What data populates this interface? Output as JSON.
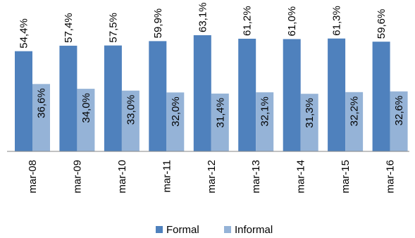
{
  "chart_data": {
    "type": "bar",
    "categories": [
      "mar-08",
      "mar-09",
      "mar-10",
      "mar-11",
      "mar-12",
      "mar-13",
      "mar-14",
      "mar-15",
      "mar-16"
    ],
    "series": [
      {
        "name": "Formal",
        "color": "#4f81bd",
        "values": [
          54.4,
          57.4,
          57.5,
          59.9,
          63.1,
          61.2,
          61.0,
          61.3,
          59.6
        ],
        "labels": [
          "54,4%",
          "57,4%",
          "57,5%",
          "59,9%",
          "63,1%",
          "61,2%",
          "61,0%",
          "61,3%",
          "59,6%"
        ]
      },
      {
        "name": "Informal",
        "color": "#95b3d7",
        "values": [
          36.6,
          34.0,
          33.0,
          32.0,
          31.4,
          32.1,
          31.3,
          32.2,
          32.6
        ],
        "labels": [
          "36,6%",
          "34,0%",
          "33,0%",
          "32,0%",
          "31,4%",
          "32,1%",
          "31,3%",
          "32,2%",
          "32,6%"
        ]
      }
    ],
    "ylim": [
      0,
      63.1
    ],
    "grid": false,
    "legend": "bottom"
  }
}
